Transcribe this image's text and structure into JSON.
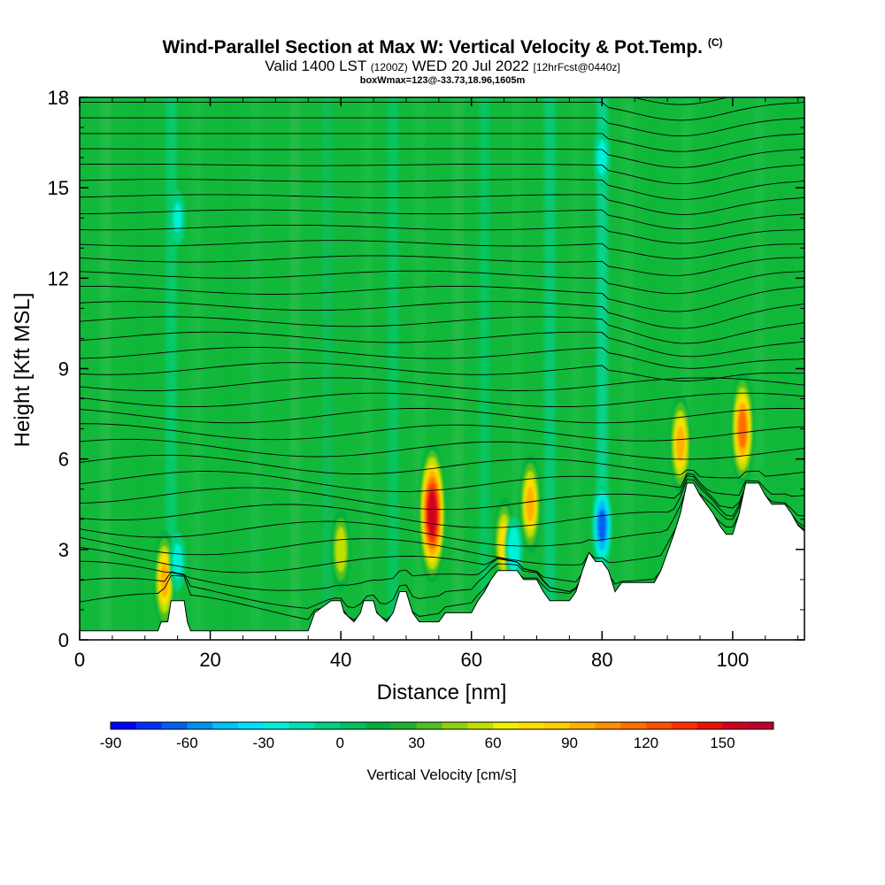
{
  "header": {
    "title": "Wind-Parallel Section at Max W: Vertical Velocity & Pot.Temp.",
    "title_mark": "(C)",
    "valid_prefix": "Valid 1400 LST",
    "valid_z": "(1200Z)",
    "valid_date": "WED 20 Jul 2022",
    "forecast": "[12hrFcst@0440z]",
    "box_info": "boxWmax=123@-33.73,18.96,1605m"
  },
  "chart_data": {
    "type": "heatmap",
    "xlabel": "Distance [nm]",
    "ylabel": "Height [Kft MSL]",
    "xlim": [
      0,
      111
    ],
    "ylim": [
      0,
      18
    ],
    "x_ticks": [
      "0",
      "20",
      "40",
      "60",
      "80",
      "100"
    ],
    "x_tick_values": [
      0,
      20,
      40,
      60,
      80,
      100
    ],
    "y_ticks": [
      "0",
      "3",
      "6",
      "9",
      "12",
      "15",
      "18"
    ],
    "y_tick_values": [
      0,
      3,
      6,
      9,
      12,
      15,
      18
    ],
    "terrain": [
      [
        0,
        0.3
      ],
      [
        12,
        0.3
      ],
      [
        12.5,
        0.6
      ],
      [
        13.5,
        0.6
      ],
      [
        14,
        1.3
      ],
      [
        16,
        1.3
      ],
      [
        16.5,
        0.6
      ],
      [
        17,
        0.3
      ],
      [
        35,
        0.3
      ],
      [
        35.5,
        0.6
      ],
      [
        36,
        0.9
      ],
      [
        38.5,
        1.3
      ],
      [
        40,
        1.3
      ],
      [
        40.5,
        0.9
      ],
      [
        42,
        0.6
      ],
      [
        43,
        0.9
      ],
      [
        43.5,
        1.3
      ],
      [
        45,
        1.3
      ],
      [
        45.5,
        0.9
      ],
      [
        47,
        0.6
      ],
      [
        48,
        0.9
      ],
      [
        49,
        1.6
      ],
      [
        50,
        1.6
      ],
      [
        51,
        0.9
      ],
      [
        52,
        0.6
      ],
      [
        55,
        0.6
      ],
      [
        56,
        0.9
      ],
      [
        60,
        0.9
      ],
      [
        61,
        1.3
      ],
      [
        62,
        1.6
      ],
      [
        63,
        2.0
      ],
      [
        64,
        2.3
      ],
      [
        67,
        2.3
      ],
      [
        68,
        2.0
      ],
      [
        70,
        2.0
      ],
      [
        71,
        1.6
      ],
      [
        72,
        1.3
      ],
      [
        75,
        1.3
      ],
      [
        76,
        1.6
      ],
      [
        77,
        2.3
      ],
      [
        78,
        2.9
      ],
      [
        79,
        2.6
      ],
      [
        80,
        2.6
      ],
      [
        81,
        2.3
      ],
      [
        82,
        1.6
      ],
      [
        83,
        1.9
      ],
      [
        88,
        1.9
      ],
      [
        89,
        2.3
      ],
      [
        90,
        2.9
      ],
      [
        91,
        3.5
      ],
      [
        92,
        4.2
      ],
      [
        93,
        5.2
      ],
      [
        94,
        5.2
      ],
      [
        95,
        4.8
      ],
      [
        96,
        4.5
      ],
      [
        97,
        4.2
      ],
      [
        98,
        3.8
      ],
      [
        99,
        3.5
      ],
      [
        100,
        3.5
      ],
      [
        101,
        4.2
      ],
      [
        102,
        5.2
      ],
      [
        104,
        5.2
      ],
      [
        105,
        4.8
      ],
      [
        106,
        4.5
      ],
      [
        108,
        4.5
      ],
      [
        109,
        4.2
      ],
      [
        110,
        3.8
      ],
      [
        111,
        3.6
      ]
    ],
    "updrafts": [
      {
        "x": 13,
        "z": 2.0,
        "value": 90
      },
      {
        "x": 40,
        "z": 3.0,
        "value": 65
      },
      {
        "x": 54,
        "z": 4.2,
        "value": 150
      },
      {
        "x": 65,
        "z": 3.2,
        "value": 80
      },
      {
        "x": 69,
        "z": 4.5,
        "value": 90
      },
      {
        "x": 92,
        "z": 6.5,
        "value": 90
      },
      {
        "x": 101.5,
        "z": 7.0,
        "value": 110
      }
    ],
    "downdrafts": [
      {
        "x": 15,
        "z": 2.6,
        "value": -35
      },
      {
        "x": 66.5,
        "z": 3.0,
        "value": -45
      },
      {
        "x": 80,
        "z": 3.8,
        "value": -70
      },
      {
        "x": 80,
        "z": 16.0,
        "value": -35
      },
      {
        "x": 15,
        "z": 14.0,
        "value": -30
      }
    ],
    "colorbar": {
      "title": "Vertical Velocity [cm/s]",
      "range": [
        -90,
        170
      ],
      "step": 10,
      "tick_labels": [
        "-90",
        "-60",
        "-30",
        "0",
        "30",
        "60",
        "90",
        "120",
        "150"
      ],
      "tick_values": [
        -90,
        -60,
        -30,
        0,
        30,
        60,
        90,
        120,
        150
      ],
      "colors": [
        "#0000ff",
        "#0030ff",
        "#0060f0",
        "#0090f0",
        "#00c0f8",
        "#00e0ff",
        "#00f0d8",
        "#00e0b0",
        "#00d080",
        "#00c060",
        "#00b040",
        "#20b030",
        "#50c020",
        "#90d010",
        "#c0e000",
        "#f0f000",
        "#ffe000",
        "#ffd000",
        "#ffb000",
        "#ff9000",
        "#ff7000",
        "#ff5000",
        "#ff3000",
        "#ee1000",
        "#d00020",
        "#c00030"
      ]
    }
  }
}
